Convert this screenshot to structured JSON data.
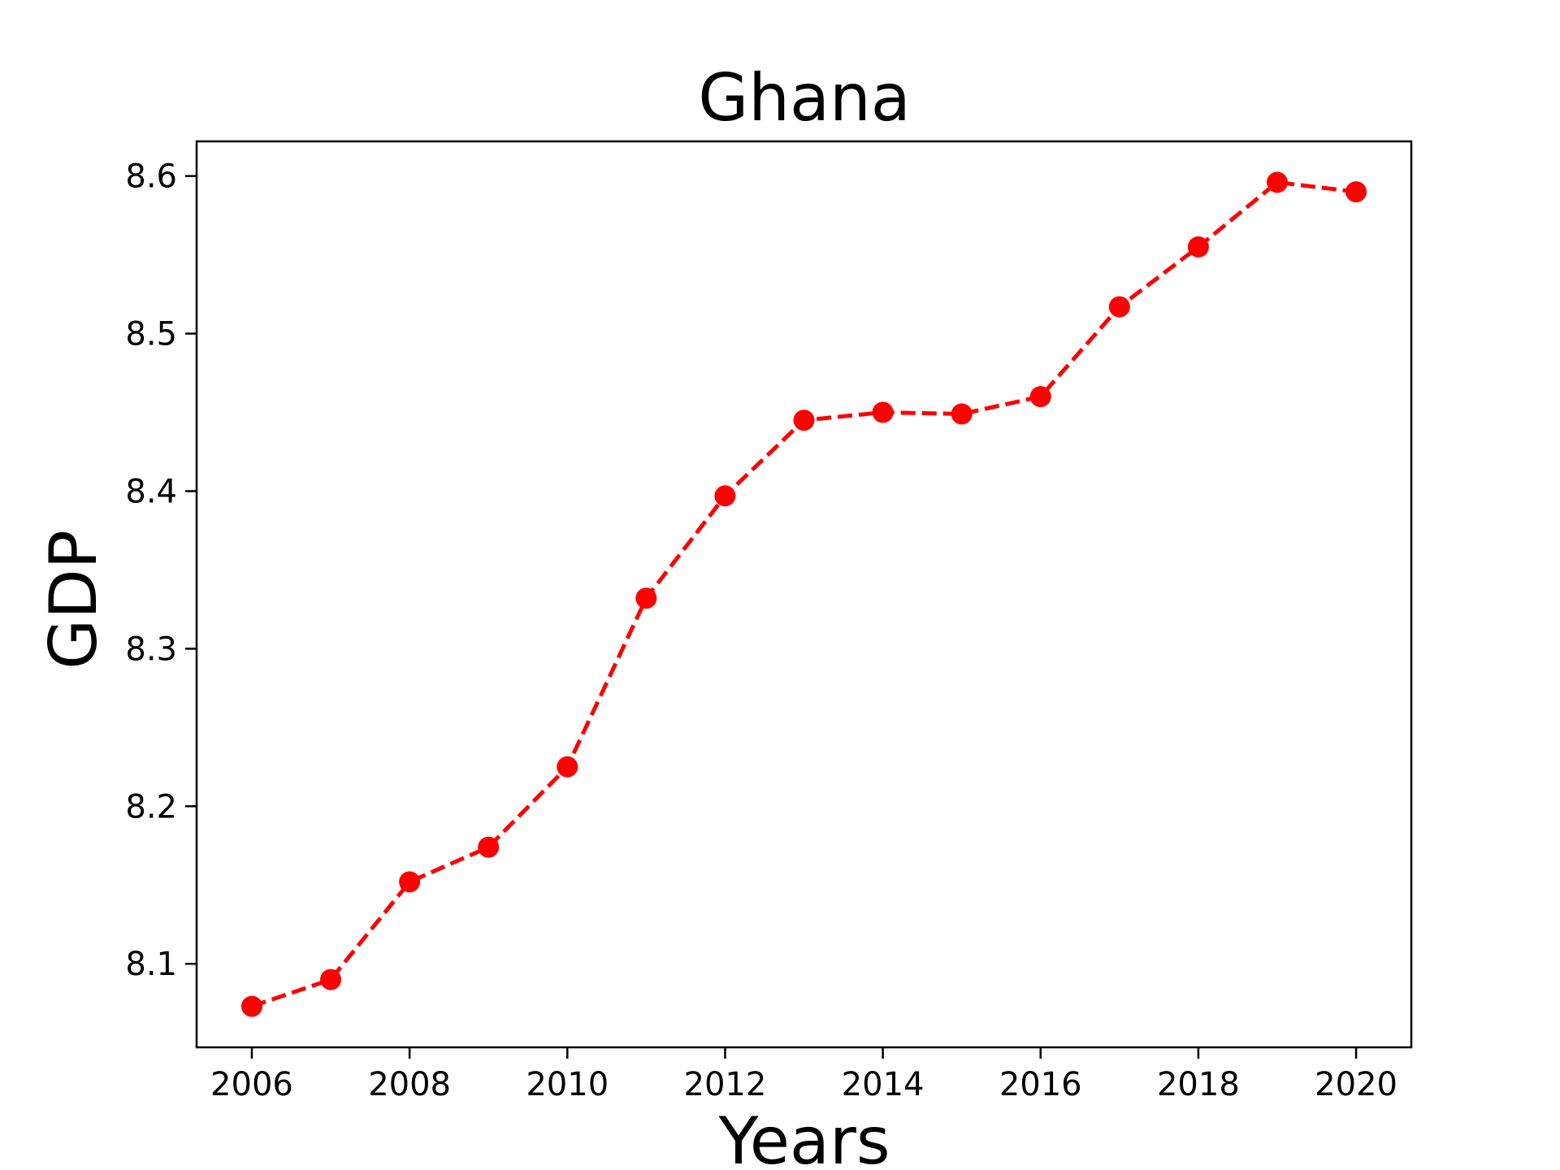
{
  "chart_data": {
    "type": "line",
    "title": "Ghana",
    "xlabel": "Years",
    "ylabel": "GDP",
    "x": [
      2006,
      2007,
      2008,
      2009,
      2010,
      2011,
      2012,
      2013,
      2014,
      2015,
      2016,
      2017,
      2018,
      2019,
      2020
    ],
    "series": [
      {
        "values": [
          8.073,
          8.09,
          8.152,
          8.174,
          8.225,
          8.332,
          8.397,
          8.445,
          8.45,
          8.449,
          8.46,
          8.517,
          8.555,
          8.596,
          8.59
        ],
        "color": "#ff0000",
        "line_style": "dashed",
        "marker": "circle"
      }
    ],
    "xlim": [
      2005.3,
      2020.7
    ],
    "ylim": [
      8.047,
      8.622
    ],
    "xticks": [
      2006,
      2008,
      2010,
      2012,
      2014,
      2016,
      2018,
      2020
    ],
    "yticks": [
      8.1,
      8.2,
      8.3,
      8.4,
      8.5,
      8.6
    ],
    "xtick_labels": [
      "2006",
      "2008",
      "2010",
      "2012",
      "2014",
      "2016",
      "2018",
      "2020"
    ],
    "ytick_labels": [
      "8.1",
      "8.2",
      "8.3",
      "8.4",
      "8.5",
      "8.6"
    ],
    "grid": false,
    "legend": "none"
  }
}
